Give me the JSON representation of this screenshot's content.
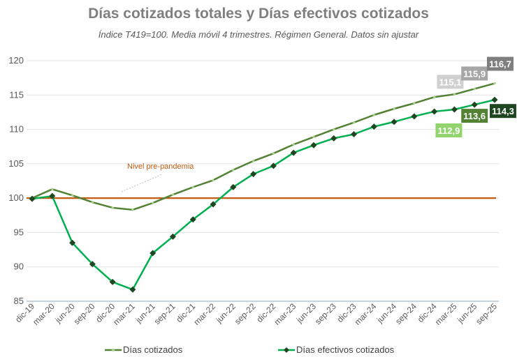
{
  "chart_data": {
    "type": "line",
    "title": "Días cotizados totales y Días efectivos cotizados",
    "subtitle": "Índice T419=100. Media móvil 4 trimestres. Régimen General. Datos sin ajustar",
    "xlabel": "",
    "ylabel": "",
    "ylim": [
      85,
      120
    ],
    "yticks": [
      "85",
      "90",
      "95",
      "100",
      "105",
      "110",
      "115",
      "120"
    ],
    "grid": true,
    "legend_position": "bottom",
    "categories": [
      "dic-19",
      "mar-20",
      "jun-20",
      "sep-20",
      "dic-20",
      "mar-21",
      "jun-21",
      "sep-21",
      "dic-21",
      "mar-22",
      "jun-22",
      "sep-22",
      "dic-22",
      "mar-23",
      "jun-23",
      "sep-23",
      "dic-23",
      "mar-24",
      "jun-24",
      "sep-24",
      "dic-24",
      "mar-25",
      "jun-25",
      "sep-25"
    ],
    "series": [
      {
        "name": "Días cotizados",
        "color": "#548235",
        "marker": "small-diamond",
        "values": [
          100.0,
          101.3,
          100.4,
          99.4,
          98.6,
          98.3,
          99.3,
          100.5,
          101.6,
          102.6,
          104.1,
          105.4,
          106.5,
          107.8,
          108.9,
          110.0,
          111.0,
          112.1,
          113.0,
          113.8,
          114.7,
          115.1,
          115.9,
          116.7
        ]
      },
      {
        "name": "Días efectivos cotizados",
        "color": "#00B050",
        "marker": "diamond",
        "values": [
          99.9,
          100.3,
          93.5,
          90.4,
          87.8,
          86.7,
          92.0,
          94.4,
          96.9,
          99.1,
          101.6,
          103.5,
          104.7,
          106.6,
          107.7,
          108.7,
          109.3,
          110.4,
          111.1,
          111.9,
          112.6,
          112.9,
          113.6,
          114.3
        ]
      }
    ],
    "reference_line": {
      "value": 100,
      "label": "Nivel pre-pandemia",
      "color": "#C55A11"
    },
    "data_labels": [
      {
        "series": 0,
        "index": 21,
        "text": "115,1",
        "bg": "#d0d0d0",
        "fg": "#ffffff"
      },
      {
        "series": 0,
        "index": 22,
        "text": "115,9",
        "bg": "#a6a6a6",
        "fg": "#ffffff"
      },
      {
        "series": 0,
        "index": 23,
        "text": "116,7",
        "bg": "#7f7f7f",
        "fg": "#ffffff"
      },
      {
        "series": 1,
        "index": 21,
        "text": "112,9",
        "bg": "#92d36e",
        "fg": "#ffffff"
      },
      {
        "series": 1,
        "index": 22,
        "text": "113,6",
        "bg": "#548235",
        "fg": "#ffffff"
      },
      {
        "series": 1,
        "index": 23,
        "text": "114,3",
        "bg": "#1e4620",
        "fg": "#ffffff"
      }
    ]
  }
}
